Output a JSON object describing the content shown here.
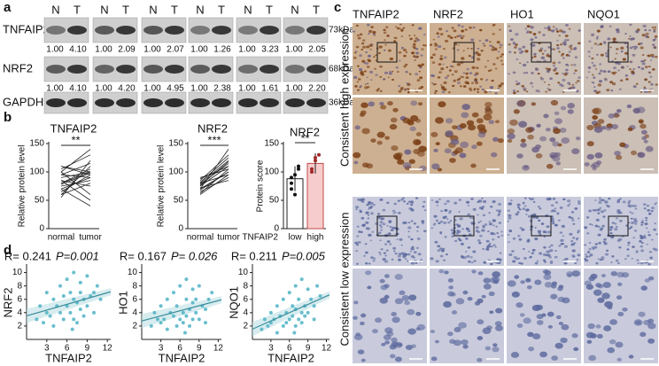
{
  "panel_a": {
    "label": "a",
    "lanes": [
      "N",
      "T"
    ],
    "rows": [
      {
        "name": "TNFAIP2",
        "kda": "73kDa",
        "ratios": [
          [
            "1.00",
            "4.10"
          ],
          [
            "1.00",
            "2.09"
          ],
          [
            "1.00",
            "2.07"
          ],
          [
            "1.00",
            "1.26"
          ],
          [
            "1.00",
            "3.23"
          ],
          [
            "1.00",
            "2.05"
          ]
        ]
      },
      {
        "name": "NRF2",
        "kda": "68kDa",
        "ratios": [
          [
            "1.00",
            "4.10"
          ],
          [
            "1.00",
            "4.20"
          ],
          [
            "1.00",
            "4.95"
          ],
          [
            "1.00",
            "2.38"
          ],
          [
            "1.00",
            "1.61"
          ],
          [
            "1.00",
            "2.20"
          ]
        ]
      },
      {
        "name": "GAPDH",
        "kda": "36kDa"
      }
    ]
  },
  "panel_c": {
    "label": "c",
    "columns": [
      "TNFAIP2",
      "NRF2",
      "HO1",
      "NQO1"
    ],
    "rows": [
      "Consistent high expression",
      "Consistent low expression"
    ]
  },
  "chart_data": [
    {
      "type": "paired",
      "label": "b",
      "title": "TNFAIP2",
      "ylabel": "Relative protein level",
      "categories": [
        "normal",
        "tumor"
      ],
      "pairs": [
        [
          80,
          100
        ],
        [
          95,
          90
        ],
        [
          60,
          110
        ],
        [
          100,
          140
        ],
        [
          70,
          40
        ],
        [
          85,
          75
        ],
        [
          110,
          95
        ],
        [
          55,
          120
        ],
        [
          90,
          100
        ],
        [
          75,
          85
        ],
        [
          105,
          130
        ],
        [
          65,
          95
        ],
        [
          100,
          60
        ],
        [
          80,
          105
        ],
        [
          70,
          90
        ],
        [
          95,
          115
        ],
        [
          85,
          50
        ],
        [
          60,
          80
        ],
        [
          110,
          100
        ],
        [
          78,
          98
        ]
      ],
      "ylim": [
        0,
        150
      ],
      "yticks": [
        0,
        50,
        100,
        150
      ],
      "annotation": "**",
      "color": "#222222"
    },
    {
      "type": "paired",
      "title": "NRF2",
      "ylabel": "Relative protein level",
      "categories": [
        "normal",
        "tumor"
      ],
      "pairs": [
        [
          70,
          100
        ],
        [
          80,
          120
        ],
        [
          65,
          90
        ],
        [
          75,
          110
        ],
        [
          85,
          130
        ],
        [
          60,
          95
        ],
        [
          90,
          105
        ],
        [
          70,
          140
        ],
        [
          78,
          115
        ],
        [
          68,
          100
        ],
        [
          82,
          125
        ],
        [
          72,
          85
        ],
        [
          88,
          110
        ],
        [
          62,
          105
        ],
        [
          76,
          118
        ],
        [
          80,
          95
        ]
      ],
      "ylim": [
        0,
        150
      ],
      "yticks": [
        0,
        50,
        100,
        150
      ],
      "annotation": "***",
      "color": "#222222"
    },
    {
      "type": "bar",
      "title": "NRF2",
      "ylabel": "Protein score",
      "xlabel": "TNFAIP2",
      "categories": [
        "low",
        "high"
      ],
      "values": [
        88,
        115
      ],
      "errors": [
        22,
        18
      ],
      "points": [
        [
          70,
          95,
          105,
          80,
          60,
          110,
          90
        ],
        [
          100,
          120,
          130,
          105,
          125
        ]
      ],
      "colors": [
        "#ffffff",
        "#f7cccc"
      ],
      "point_colors": [
        "#111111",
        "#a02828"
      ],
      "ylim": [
        0,
        150
      ],
      "yticks": [
        0,
        50,
        100,
        150
      ],
      "annotation": "**"
    },
    {
      "type": "scatter",
      "label": "d",
      "stat": "R= 0.241",
      "p": "P=0.001",
      "xlabel": "TNFAIP2",
      "ylabel": "NRF2",
      "color": "#4fb3c4",
      "x": [
        1.5,
        2,
        2.5,
        3,
        3,
        3.5,
        4,
        4,
        4.5,
        5,
        5,
        5.5,
        5.5,
        6,
        6,
        6.5,
        6.5,
        7,
        7,
        7,
        7.5,
        7.5,
        8,
        8,
        8,
        8.5,
        8.5,
        9,
        9,
        9.5,
        10,
        10,
        10.5,
        11,
        6.8
      ],
      "y": [
        3,
        5,
        2.5,
        4,
        7,
        3.5,
        6,
        2,
        5,
        4,
        8,
        3,
        6.5,
        5,
        9,
        4,
        7,
        3,
        6,
        10,
        5.5,
        2.5,
        7,
        4.5,
        8.5,
        6,
        3.5,
        5,
        9.5,
        6.5,
        7,
        4,
        8,
        6,
        1.5
      ],
      "xlim": [
        0,
        12.5
      ],
      "xticks": [
        3,
        6,
        9,
        12
      ],
      "ylim": [
        0,
        11
      ],
      "yticks": [
        2,
        4,
        6,
        8,
        10
      ]
    },
    {
      "type": "scatter",
      "stat": "R= 0.167",
      "p": "P= 0.026",
      "xlabel": "TNFAIP2",
      "ylabel": "HO1",
      "color": "#4fb3c4",
      "x": [
        1.5,
        2,
        2.5,
        3,
        3,
        3.5,
        4,
        4,
        4.5,
        5,
        5,
        5.5,
        5.5,
        6,
        6,
        6.5,
        6.5,
        7,
        7,
        7,
        7.5,
        7.5,
        8,
        8,
        8,
        8.5,
        8.5,
        9,
        9,
        9.5,
        10,
        10,
        10.5,
        11,
        6.8
      ],
      "y": [
        2,
        4,
        3,
        5,
        2.5,
        3,
        6,
        1.5,
        4,
        3.5,
        7,
        2,
        5,
        3,
        8,
        4,
        2.5,
        6,
        3.5,
        9,
        4.5,
        2,
        5.5,
        3,
        7.5,
        4,
        6,
        3,
        8,
        5,
        4.5,
        2.5,
        6,
        7,
        1
      ],
      "xlim": [
        0,
        12.5
      ],
      "xticks": [
        3,
        6,
        9,
        12
      ],
      "ylim": [
        0,
        11
      ],
      "yticks": [
        2,
        4,
        6,
        8,
        10
      ]
    },
    {
      "type": "scatter",
      "stat": "R= 0.211",
      "p": "P=0.005",
      "xlabel": "TNFAIP2",
      "ylabel": "NQO1",
      "color": "#4fb3c4",
      "x": [
        1.5,
        2,
        2.5,
        3,
        3,
        3.5,
        4,
        4,
        4.5,
        5,
        5,
        5.5,
        5.5,
        6,
        6,
        6.5,
        6.5,
        7,
        7,
        7,
        7.5,
        7.5,
        8,
        8,
        8,
        8.5,
        8.5,
        9,
        9,
        9.5,
        10,
        10,
        10.5,
        11,
        6.8
      ],
      "y": [
        1.5,
        3,
        2,
        4,
        2.5,
        3,
        5,
        1,
        3.5,
        2,
        6,
        2.5,
        4,
        3,
        7,
        3.5,
        5,
        2,
        4.5,
        8,
        3,
        6,
        4,
        2.5,
        9,
        5,
        3.5,
        4,
        7.5,
        6,
        5,
        3,
        8,
        6.5,
        1
      ],
      "xlim": [
        0,
        12.5
      ],
      "xticks": [
        3,
        6,
        9,
        12
      ],
      "ylim": [
        0,
        11
      ],
      "yticks": [
        2,
        4,
        6,
        8,
        10
      ]
    }
  ]
}
